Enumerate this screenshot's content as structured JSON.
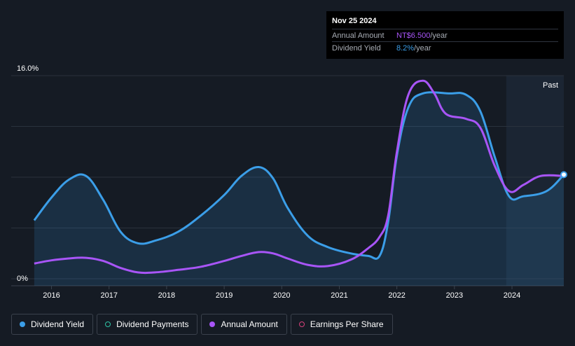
{
  "tooltip": {
    "date": "Nov 25 2024",
    "rows": [
      {
        "key": "Annual Amount",
        "value": "NT$6.500",
        "unit": "/year"
      },
      {
        "key": "Dividend Yield",
        "value": "8.2%",
        "unit": "/year"
      }
    ]
  },
  "past_label": "Past",
  "legend": [
    {
      "label": "Dividend Yield",
      "color": "#3b9ee8",
      "style": "filled"
    },
    {
      "label": "Dividend Payments",
      "color": "#2ec4a6",
      "style": "hollow"
    },
    {
      "label": "Annual Amount",
      "color": "#a855f7",
      "style": "filled"
    },
    {
      "label": "Earnings Per Share",
      "color": "#d6407a",
      "style": "hollow"
    }
  ],
  "colors": {
    "background": "#151b24",
    "dividend_yield": "#3b9ee8",
    "annual_amount": "#a855f7",
    "past_region": "#1b2533"
  },
  "chart_data": {
    "type": "line",
    "y_tick_labels": [
      "16.0%",
      "0%"
    ],
    "ylim": [
      0,
      16
    ],
    "xlim": [
      2015.3,
      2024.9
    ],
    "x_ticks": [
      2016,
      2017,
      2018,
      2019,
      2020,
      2021,
      2022,
      2023,
      2024
    ],
    "past_region_start": 2023.9,
    "grid": true,
    "series": [
      {
        "name": "Dividend Yield",
        "color": "#3b9ee8",
        "fill": true,
        "points": [
          [
            2015.7,
            4.6
          ],
          [
            2016.0,
            6.4
          ],
          [
            2016.3,
            7.8
          ],
          [
            2016.6,
            8.1
          ],
          [
            2016.9,
            6.2
          ],
          [
            2017.2,
            3.7
          ],
          [
            2017.5,
            2.8
          ],
          [
            2017.8,
            3.0
          ],
          [
            2018.2,
            3.7
          ],
          [
            2018.6,
            5.0
          ],
          [
            2019.0,
            6.6
          ],
          [
            2019.3,
            8.1
          ],
          [
            2019.6,
            8.8
          ],
          [
            2019.85,
            7.9
          ],
          [
            2020.1,
            5.6
          ],
          [
            2020.45,
            3.4
          ],
          [
            2020.8,
            2.5
          ],
          [
            2021.2,
            2.0
          ],
          [
            2021.5,
            1.8
          ],
          [
            2021.7,
            1.8
          ],
          [
            2021.85,
            4.5
          ],
          [
            2022.0,
            9.7
          ],
          [
            2022.2,
            13.5
          ],
          [
            2022.45,
            14.6
          ],
          [
            2022.9,
            14.6
          ],
          [
            2023.2,
            14.5
          ],
          [
            2023.45,
            13.2
          ],
          [
            2023.7,
            9.6
          ],
          [
            2023.95,
            6.5
          ],
          [
            2024.2,
            6.5
          ],
          [
            2024.6,
            6.9
          ],
          [
            2024.9,
            8.2
          ]
        ]
      },
      {
        "name": "Annual Amount",
        "color": "#a855f7",
        "fill": false,
        "points": [
          [
            2015.7,
            1.2
          ],
          [
            2016.0,
            1.45
          ],
          [
            2016.3,
            1.6
          ],
          [
            2016.6,
            1.65
          ],
          [
            2016.9,
            1.4
          ],
          [
            2017.2,
            0.85
          ],
          [
            2017.5,
            0.5
          ],
          [
            2017.8,
            0.5
          ],
          [
            2018.2,
            0.7
          ],
          [
            2018.6,
            0.95
          ],
          [
            2019.0,
            1.4
          ],
          [
            2019.3,
            1.8
          ],
          [
            2019.6,
            2.1
          ],
          [
            2019.85,
            2.0
          ],
          [
            2020.1,
            1.6
          ],
          [
            2020.45,
            1.1
          ],
          [
            2020.8,
            1.0
          ],
          [
            2021.2,
            1.5
          ],
          [
            2021.5,
            2.4
          ],
          [
            2021.7,
            3.3
          ],
          [
            2021.85,
            5.0
          ],
          [
            2022.0,
            10.0
          ],
          [
            2022.2,
            14.5
          ],
          [
            2022.45,
            15.6
          ],
          [
            2022.65,
            14.6
          ],
          [
            2022.85,
            13.0
          ],
          [
            2023.2,
            12.6
          ],
          [
            2023.45,
            11.9
          ],
          [
            2023.7,
            8.9
          ],
          [
            2023.95,
            6.9
          ],
          [
            2024.2,
            7.4
          ],
          [
            2024.5,
            8.1
          ],
          [
            2024.9,
            8.1
          ]
        ]
      }
    ],
    "end_marker": {
      "x": 2024.9,
      "y": 8.2
    }
  }
}
